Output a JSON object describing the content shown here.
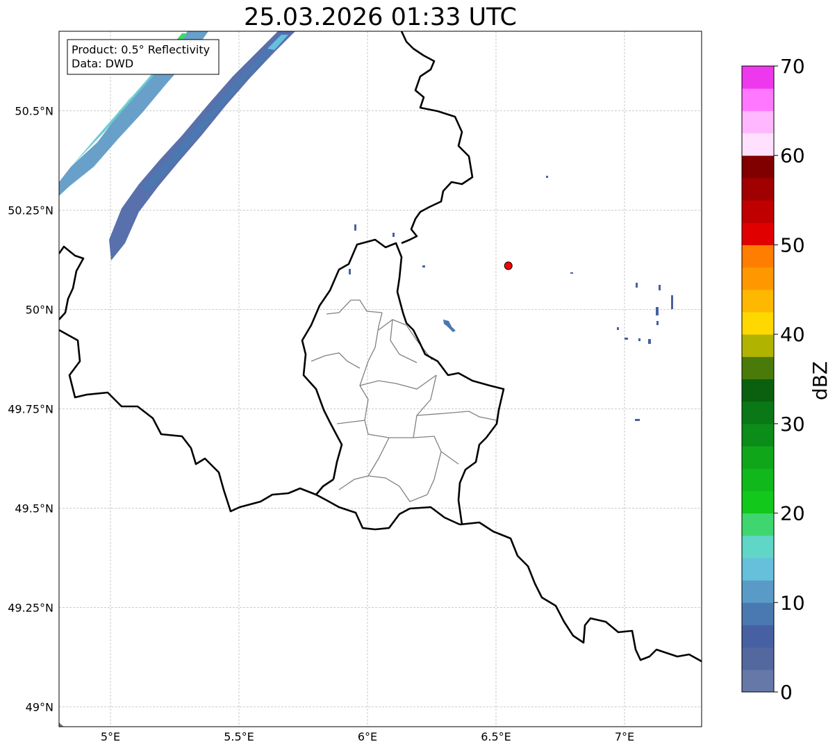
{
  "title": "25.03.2026 01:33 UTC",
  "info_box": {
    "line1": "Product: 0.5° Reflectivity",
    "line2": "Data: DWD"
  },
  "map": {
    "lon_range": [
      4.8,
      7.3
    ],
    "lat_range": [
      48.95,
      50.7
    ],
    "lon_ticks": [
      {
        "value": 5.0,
        "label": "5°E"
      },
      {
        "value": 5.5,
        "label": "5.5°E"
      },
      {
        "value": 6.0,
        "label": "6°E"
      },
      {
        "value": 6.5,
        "label": "6.5°E"
      },
      {
        "value": 7.0,
        "label": "7°E"
      }
    ],
    "lat_ticks": [
      {
        "value": 50.5,
        "label": "50.5°N"
      },
      {
        "value": 50.25,
        "label": "50.25°N"
      },
      {
        "value": 50.0,
        "label": "50°N"
      },
      {
        "value": 49.75,
        "label": "49.75°N"
      },
      {
        "value": 49.5,
        "label": "49.5°N"
      },
      {
        "value": 49.25,
        "label": "49.25°N"
      },
      {
        "value": 49.0,
        "label": "49°N"
      }
    ],
    "grid": true,
    "radar_site": {
      "lon": 6.548,
      "lat": 50.11,
      "color": "#ff0000"
    }
  },
  "colorbar": {
    "label": "dBZ",
    "min": 0,
    "max": 70,
    "ticks": [
      {
        "value": 0,
        "label": "0"
      },
      {
        "value": 10,
        "label": "10"
      },
      {
        "value": 20,
        "label": "20"
      },
      {
        "value": 30,
        "label": "30"
      },
      {
        "value": 40,
        "label": "40"
      },
      {
        "value": 50,
        "label": "50"
      },
      {
        "value": 60,
        "label": "60"
      },
      {
        "value": 70,
        "label": "70"
      }
    ],
    "colors": [
      "#6578a8",
      "#53689e",
      "#4660a3",
      "#4a78b0",
      "#599bc6",
      "#66c0db",
      "#60d6c7",
      "#3fd670",
      "#12c81a",
      "#10b81c",
      "#10a61a",
      "#0c8c18",
      "#0a7816",
      "#0a600e",
      "#4a7a0a",
      "#b0b400",
      "#ffd800",
      "#ffb800",
      "#ff9800",
      "#ff7e00",
      "#e00000",
      "#c00000",
      "#a00000",
      "#800000",
      "#ffe0ff",
      "#ffb8ff",
      "#ff78ff",
      "#ee38ee"
    ]
  }
}
